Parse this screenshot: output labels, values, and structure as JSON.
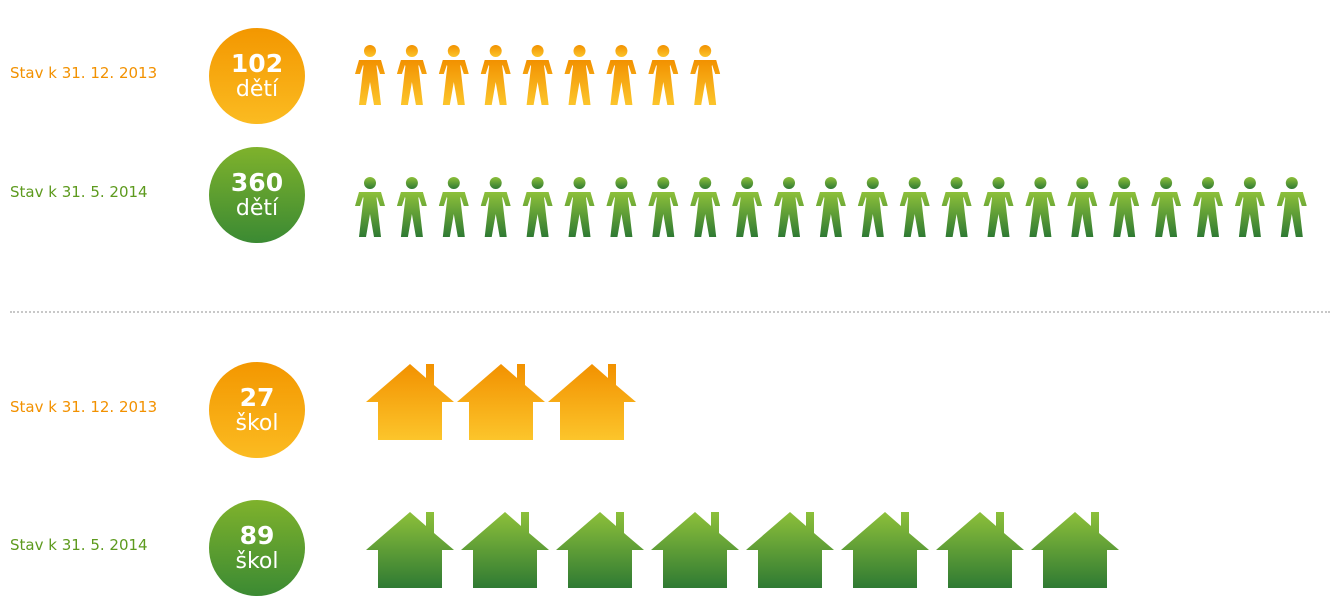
{
  "colors": {
    "orange": "#f29100",
    "orange_light": "#fcc52b",
    "green": "#8dc03a",
    "green_dark": "#2f7a33",
    "label_green": "#5d9a1e",
    "separator": "#c8c8c8"
  },
  "chart_data": [
    {
      "type": "pictogram",
      "icon": "person-icon",
      "rows": [
        {
          "label": "Stav k 31. 12. 2013",
          "value": "102",
          "unit": "dětí",
          "icon_count": 9,
          "color": "orange"
        },
        {
          "label": "Stav k 31. 5. 2014",
          "value": "360",
          "unit": "dětí",
          "icon_count": 23,
          "color": "green"
        }
      ]
    },
    {
      "type": "pictogram",
      "icon": "house-icon",
      "rows": [
        {
          "label": "Stav k 31. 12. 2013",
          "value": "27",
          "unit": "škol",
          "icon_count": 3,
          "color": "orange"
        },
        {
          "label": "Stav k 31. 5. 2014",
          "value": "89",
          "unit": "škol",
          "icon_count": 8,
          "color": "green"
        }
      ]
    }
  ]
}
